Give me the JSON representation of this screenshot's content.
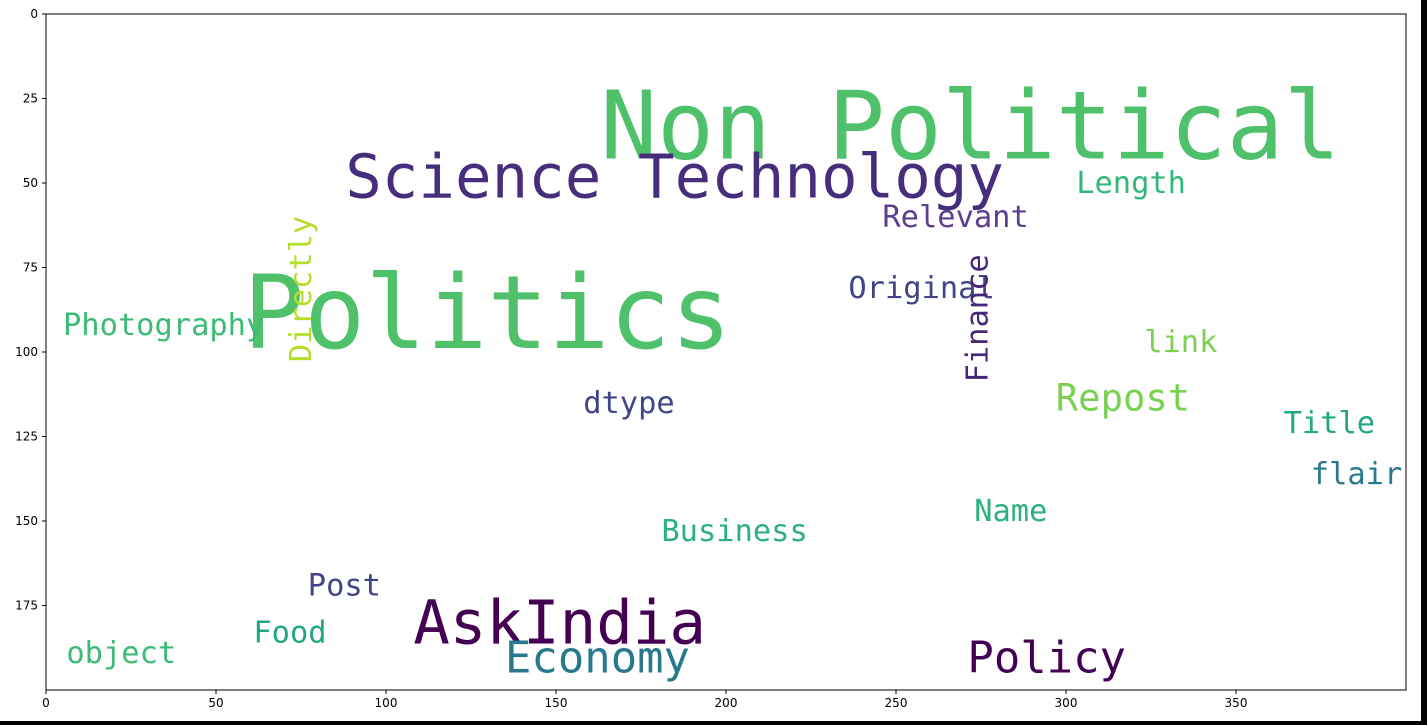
{
  "chart_data": {
    "type": "wordcloud",
    "title": "",
    "xlabel": "",
    "ylabel": "",
    "xlim": [
      0,
      400
    ],
    "ylim": [
      200,
      0
    ],
    "grid": false,
    "x_ticks": [
      0,
      50,
      100,
      150,
      200,
      250,
      300,
      350
    ],
    "y_ticks": [
      0,
      25,
      50,
      75,
      100,
      125,
      150,
      175
    ],
    "words": [
      {
        "text": "Non Political",
        "x": 163,
        "y": 17,
        "size": 28,
        "rotate": 0,
        "color": "#4fc16b"
      },
      {
        "text": "Science Technology",
        "x": 88,
        "y": 38,
        "size": 18,
        "rotate": 0,
        "color": "#472e7c"
      },
      {
        "text": "Politics",
        "x": 58,
        "y": 71,
        "size": 30,
        "rotate": 0,
        "color": "#4fc16b"
      },
      {
        "text": "Length",
        "x": 303,
        "y": 45,
        "size": 9,
        "rotate": 0,
        "color": "#35b779"
      },
      {
        "text": "Relevant",
        "x": 246,
        "y": 55,
        "size": 9,
        "rotate": 0,
        "color": "#5c3d8f"
      },
      {
        "text": "Original",
        "x": 236,
        "y": 76,
        "size": 9,
        "rotate": 0,
        "color": "#414487"
      },
      {
        "text": "Photography",
        "x": 5,
        "y": 87,
        "size": 9,
        "rotate": 0,
        "color": "#3bbb75"
      },
      {
        "text": "Directly",
        "x": 70,
        "y": 103,
        "size": 9,
        "rotate": -90,
        "color": "#b5de2b"
      },
      {
        "text": "link",
        "x": 323,
        "y": 92,
        "size": 9,
        "rotate": 0,
        "color": "#7ad151"
      },
      {
        "text": "Finance",
        "x": 269,
        "y": 109,
        "size": 9,
        "rotate": -90,
        "color": "#472878"
      },
      {
        "text": "Repost",
        "x": 297,
        "y": 107,
        "size": 11,
        "rotate": 0,
        "color": "#7ad151"
      },
      {
        "text": "dtype",
        "x": 158,
        "y": 110,
        "size": 9,
        "rotate": 0,
        "color": "#414487"
      },
      {
        "text": "Title",
        "x": 364,
        "y": 116,
        "size": 9,
        "rotate": 0,
        "color": "#22a884"
      },
      {
        "text": "flair",
        "x": 372,
        "y": 131,
        "size": 9,
        "rotate": 0,
        "color": "#2a788e"
      },
      {
        "text": "Name",
        "x": 273,
        "y": 142,
        "size": 9,
        "rotate": 0,
        "color": "#2cb17e"
      },
      {
        "text": "Business",
        "x": 181,
        "y": 148,
        "size": 9,
        "rotate": 0,
        "color": "#2cb17e"
      },
      {
        "text": "Post",
        "x": 77,
        "y": 164,
        "size": 9,
        "rotate": 0,
        "color": "#414487"
      },
      {
        "text": "AskIndia",
        "x": 108,
        "y": 170,
        "size": 18,
        "rotate": 0,
        "color": "#440154"
      },
      {
        "text": "Food",
        "x": 61,
        "y": 178,
        "size": 9,
        "rotate": 0,
        "color": "#21a585"
      },
      {
        "text": "object",
        "x": 6,
        "y": 184,
        "size": 9,
        "rotate": 0,
        "color": "#3bbb75"
      },
      {
        "text": "Economy",
        "x": 135,
        "y": 183,
        "size": 13,
        "rotate": 0,
        "color": "#2a788e"
      },
      {
        "text": "Policy",
        "x": 271,
        "y": 183,
        "size": 13,
        "rotate": 0,
        "color": "#440154"
      }
    ]
  }
}
